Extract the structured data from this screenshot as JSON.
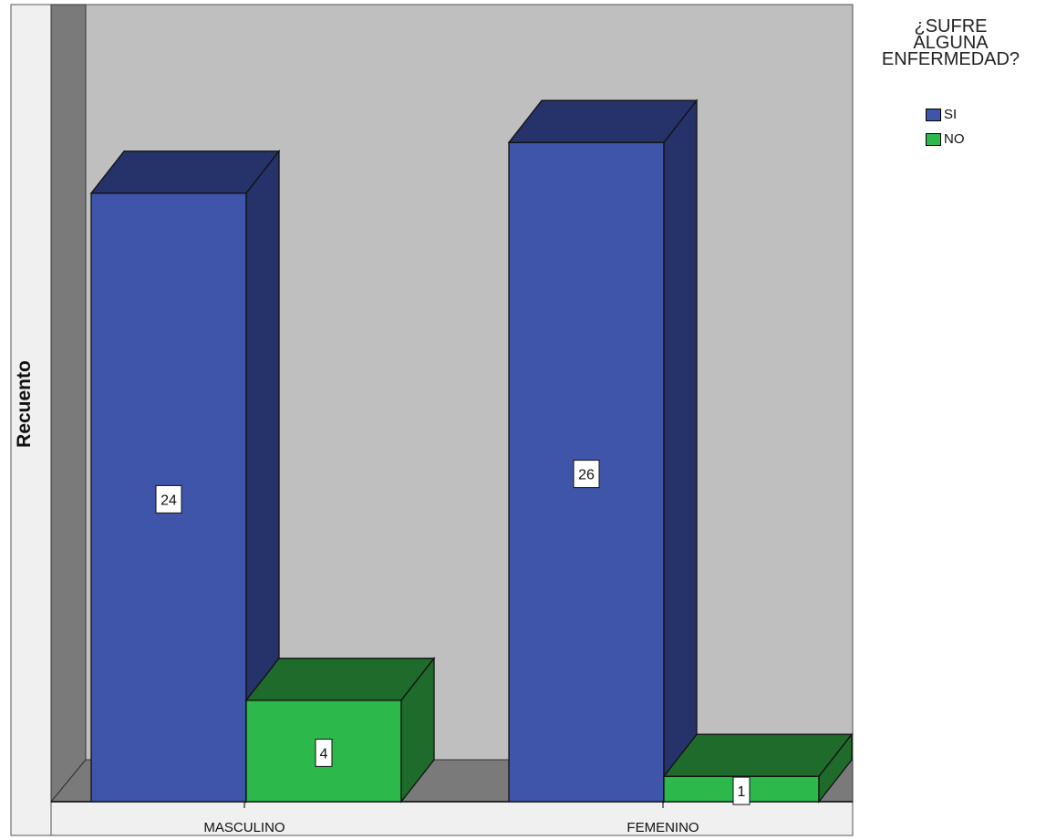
{
  "chart_data": {
    "type": "bar",
    "title": "",
    "xlabel": "",
    "ylabel": "Recuento",
    "categories": [
      "MASCULINO",
      "FEMENINO"
    ],
    "series": [
      {
        "name": "SI",
        "values": [
          24,
          26
        ],
        "color": "#3e55a9",
        "side_color": "#26336a"
      },
      {
        "name": "NO",
        "values": [
          4,
          1
        ],
        "color": "#2db84b",
        "side_color": "#1f6b2c"
      }
    ],
    "data_labels": true,
    "legend": {
      "title": "¿SUFRE\nALGUNA\nENFERMEDAD?",
      "position": "top-right"
    },
    "grid": false,
    "ylim": [
      0,
      30
    ],
    "wall_color": "#bfbfbf",
    "side_wall_color": "#7a7a7a"
  }
}
